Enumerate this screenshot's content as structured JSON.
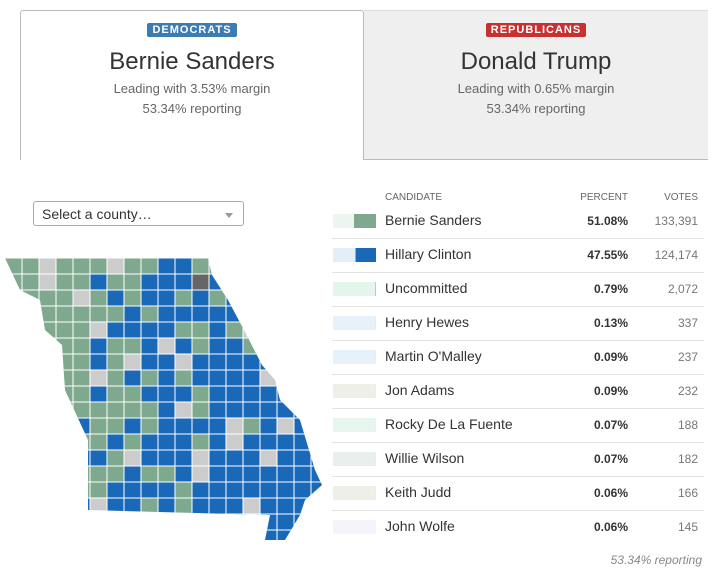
{
  "tabs": [
    {
      "party": "DEMOCRATS",
      "leader": "Bernie Sanders",
      "margin": "Leading with 3.53% margin",
      "reporting": "53.34% reporting"
    },
    {
      "party": "REPUBLICANS",
      "leader": "Donald Trump",
      "margin": "Leading with 0.65% margin",
      "reporting": "53.34% reporting"
    }
  ],
  "county_select": "Select a county…",
  "table": {
    "columns": [
      "CANDIDATE",
      "PERCENT",
      "VOTES"
    ],
    "rows": [
      {
        "candidate": "Bernie Sanders",
        "percent": 51.08,
        "percent_label": "51.08%",
        "votes": "133,391",
        "color": "#7fa98f",
        "track_color": "#eef4f0"
      },
      {
        "candidate": "Hillary Clinton",
        "percent": 47.55,
        "percent_label": "47.55%",
        "votes": "124,174",
        "color": "#1a68b8",
        "track_color": "#e3eef8"
      },
      {
        "candidate": "Uncommitted",
        "percent": 0.79,
        "percent_label": "0.79%",
        "votes": "2,072",
        "color": "#4e8a63",
        "track_color": "#e4f5ec"
      },
      {
        "candidate": "Henry Hewes",
        "percent": 0.13,
        "percent_label": "0.13%",
        "votes": "337",
        "color": "#8bb8e0",
        "track_color": "#e6f1fa"
      },
      {
        "candidate": "Martin O'Malley",
        "percent": 0.09,
        "percent_label": "0.09%",
        "votes": "237",
        "color": "#8bb8e0",
        "track_color": "#e6f1fa"
      },
      {
        "candidate": "Jon Adams",
        "percent": 0.09,
        "percent_label": "0.09%",
        "votes": "232",
        "color": "#aab09a",
        "track_color": "#eef0e8"
      },
      {
        "candidate": "Rocky De La Fuente",
        "percent": 0.07,
        "percent_label": "0.07%",
        "votes": "188",
        "color": "#8fcaa8",
        "track_color": "#e6f5ee"
      },
      {
        "candidate": "Willie Wilson",
        "percent": 0.07,
        "percent_label": "0.07%",
        "votes": "182",
        "color": "#9fb8ab",
        "track_color": "#e8efec"
      },
      {
        "candidate": "Keith Judd",
        "percent": 0.06,
        "percent_label": "0.06%",
        "votes": "166",
        "color": "#aab09a",
        "track_color": "#eef0e8"
      },
      {
        "candidate": "John Wolfe",
        "percent": 0.06,
        "percent_label": "0.06%",
        "votes": "145",
        "color": "#b8bdd6",
        "track_color": "#f4f5fa"
      }
    ]
  },
  "footer": "53.34% reporting"
}
